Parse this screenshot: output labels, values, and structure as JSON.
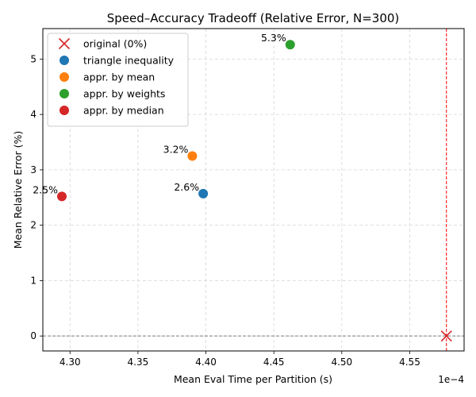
{
  "chart_data": {
    "type": "scatter",
    "title": "Speed–Accuracy Tradeoff (Relative Error, N=300)",
    "xlabel": "Mean Eval Time per Partition (s)",
    "ylabel": "Mean Relative Error (%)",
    "x_offset_text": "1e−4",
    "xlim": [
      4.28,
      4.59
    ],
    "ylim": [
      -0.27,
      5.55
    ],
    "x_ticks": [
      4.3,
      4.35,
      4.4,
      4.45,
      4.5,
      4.55
    ],
    "x_tick_labels": [
      "4.30",
      "4.35",
      "4.40",
      "4.45",
      "4.50",
      "4.55"
    ],
    "y_ticks": [
      0,
      1,
      2,
      3,
      4,
      5
    ],
    "y_tick_labels": [
      "0",
      "1",
      "2",
      "3",
      "4",
      "5"
    ],
    "grid": true,
    "legend_position": "top-left",
    "series": [
      {
        "name": "original (0%)",
        "marker": "x",
        "color": "#d62728",
        "x": 4.577,
        "y": 0.0,
        "label": ""
      },
      {
        "name": "triangle inequality",
        "marker": "o",
        "color": "#1f77b4",
        "x": 4.398,
        "y": 2.57,
        "label": "2.6%"
      },
      {
        "name": "appr. by mean",
        "marker": "o",
        "color": "#ff7f0e",
        "x": 4.39,
        "y": 3.25,
        "label": "3.2%"
      },
      {
        "name": "appr. by weights",
        "marker": "o",
        "color": "#2ca02c",
        "x": 4.462,
        "y": 5.26,
        "label": "5.3%"
      },
      {
        "name": "appr. by median",
        "marker": "o",
        "color": "#d62728",
        "x": 4.294,
        "y": 2.52,
        "label": "2.5%"
      }
    ],
    "reference_lines": [
      {
        "orientation": "horizontal",
        "value": 0,
        "color": "#808080",
        "style": "dashed"
      },
      {
        "orientation": "vertical",
        "value": 4.577,
        "color": "#ff0000",
        "style": "dashed"
      }
    ]
  }
}
